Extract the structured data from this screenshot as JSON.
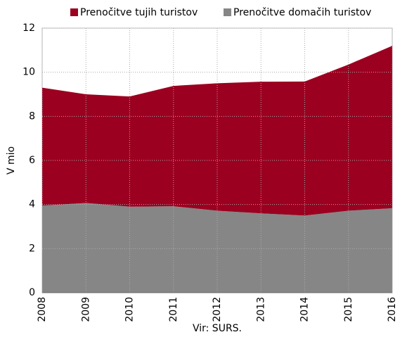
{
  "chart_data": {
    "type": "stacked_area",
    "categories": [
      "2008",
      "2009",
      "2010",
      "2011",
      "2012",
      "2013",
      "2014",
      "2015",
      "2016"
    ],
    "series": [
      {
        "name": "Prenočitve tujih turistov",
        "color": "#9b0020",
        "values": [
          5.35,
          4.93,
          5.0,
          5.46,
          5.78,
          5.97,
          6.08,
          6.63,
          7.37
        ]
      },
      {
        "name": "Prenočitve domačih turistov",
        "color": "#868686",
        "values": [
          3.95,
          4.07,
          3.9,
          3.92,
          3.72,
          3.6,
          3.5,
          3.72,
          3.83
        ]
      }
    ],
    "y_label": "V mio",
    "source": "Vir: SURS.",
    "ylim": [
      0,
      12
    ],
    "yticks": [
      0,
      2,
      4,
      6,
      8,
      10,
      12
    ],
    "grid": true
  }
}
